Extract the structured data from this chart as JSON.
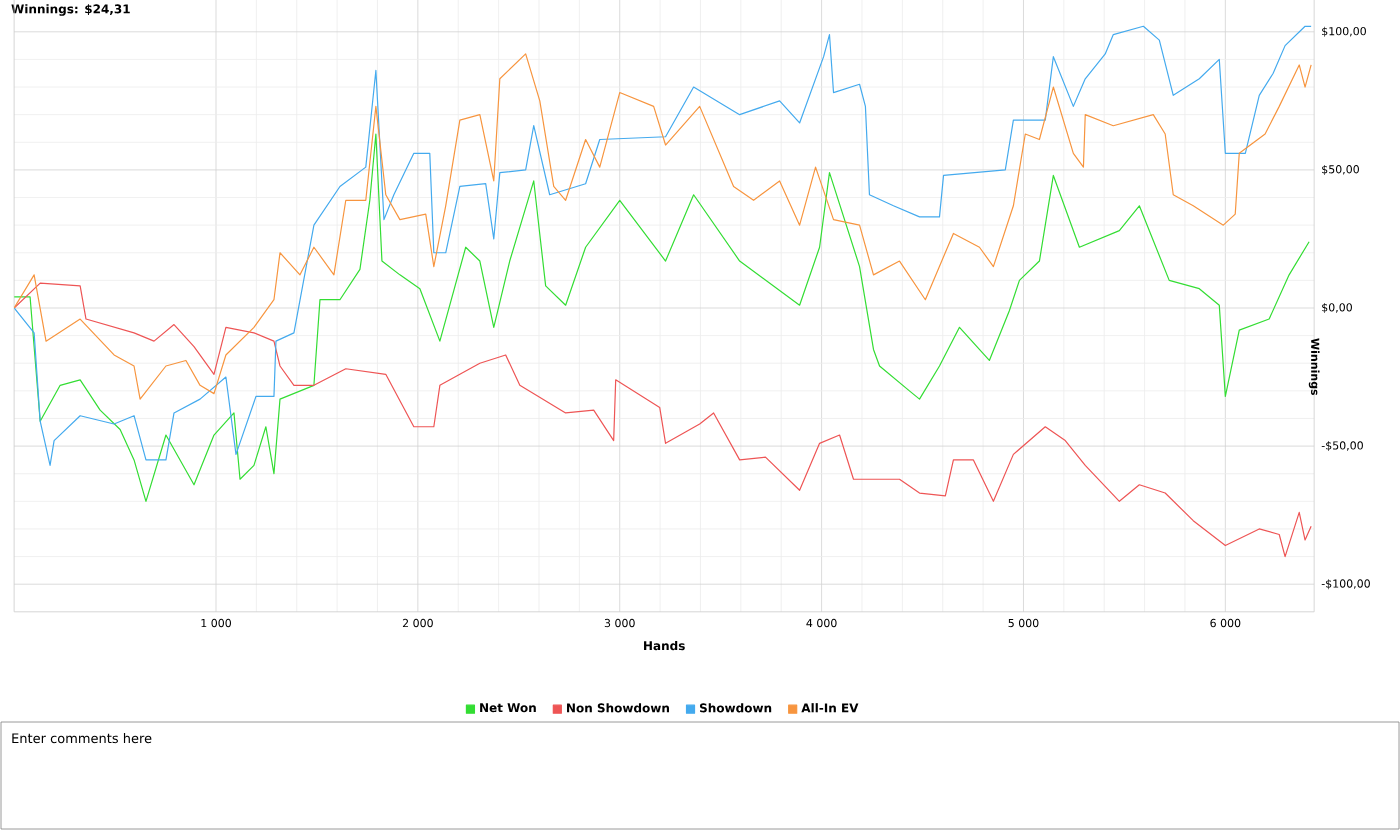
{
  "chart_data": {
    "type": "line",
    "title": "Winnings: $24,31",
    "xlabel": "Hands",
    "ylabel": "Winnings",
    "xlim": [
      0,
      6440
    ],
    "ylim": [
      -110,
      121
    ],
    "xticks": [
      {
        "value": 1000,
        "label": "1 000"
      },
      {
        "value": 2000,
        "label": "2 000"
      },
      {
        "value": 3000,
        "label": "3 000"
      },
      {
        "value": 4000,
        "label": "4 000"
      },
      {
        "value": 5000,
        "label": "5 000"
      },
      {
        "value": 6000,
        "label": "6 000"
      }
    ],
    "yticks": [
      {
        "value": -100,
        "label": "-$100,00"
      },
      {
        "value": -50,
        "label": "-$50,00"
      },
      {
        "value": 0,
        "label": "$0,00"
      },
      {
        "value": 50,
        "label": "$50,00"
      },
      {
        "value": 100,
        "label": "$100,00"
      }
    ],
    "grid": true,
    "legend": "bottom",
    "marker": "none",
    "line_style": "solid",
    "annotations": [
      "Enter comments here"
    ],
    "series": [
      {
        "name": "Net Won",
        "color": "#33dd33",
        "x": [
          0,
          79,
          129,
          228,
          327,
          426,
          525,
          594,
          653,
          752,
          891,
          990,
          1089,
          1119,
          1188,
          1247,
          1287,
          1317,
          1485,
          1515,
          1614,
          1713,
          1762,
          1792,
          1822,
          1911,
          2010,
          2109,
          2237,
          2307,
          2376,
          2455,
          2574,
          2633,
          2732,
          2831,
          3000,
          3227,
          3366,
          3594,
          3891,
          3990,
          4039,
          4188,
          4257,
          4287,
          4435,
          4485,
          4584,
          4683,
          4831,
          4930,
          4980,
          5079,
          5148,
          5277,
          5475,
          5574,
          5722,
          5871,
          5970,
          6000,
          6069,
          6217,
          6316,
          6415
        ],
        "values": [
          4,
          4,
          -41,
          -28,
          -26,
          -37,
          -44,
          -55,
          -70,
          -46,
          -64,
          -46,
          -38,
          -62,
          -57,
          -43,
          -60,
          -33,
          -28,
          3,
          3,
          14,
          39,
          63,
          17,
          12,
          7,
          -12,
          22,
          17,
          -7,
          17,
          46,
          8,
          1,
          22,
          39,
          17,
          41,
          17,
          1,
          22,
          49,
          15,
          -15,
          -21,
          -30,
          -33,
          -21,
          -7,
          -19,
          -1,
          10,
          17,
          48,
          22,
          28,
          37,
          10,
          7,
          1,
          -32,
          -8,
          -4,
          12,
          24
        ]
      },
      {
        "name": "Non Showdown",
        "color": "#ee5555",
        "x": [
          0,
          129,
          327,
          356,
          594,
          693,
          792,
          891,
          990,
          1049,
          1188,
          1287,
          1317,
          1386,
          1485,
          1643,
          1841,
          1980,
          2079,
          2109,
          2307,
          2435,
          2505,
          2732,
          2871,
          2970,
          2980,
          3198,
          3227,
          3396,
          3465,
          3594,
          3722,
          3891,
          3990,
          4089,
          4158,
          4386,
          4485,
          4613,
          4653,
          4752,
          4851,
          4950,
          5108,
          5207,
          5306,
          5475,
          5574,
          5702,
          5841,
          6000,
          6168,
          6267,
          6296,
          6366,
          6395,
          6425
        ],
        "values": [
          0,
          9,
          8,
          -4,
          -9,
          -12,
          -6,
          -14,
          -24,
          -7,
          -9,
          -12,
          -21,
          -28,
          -28,
          -22,
          -24,
          -43,
          -43,
          -28,
          -20,
          -17,
          -28,
          -38,
          -37,
          -48,
          -26,
          -36,
          -49,
          -42,
          -38,
          -55,
          -54,
          -66,
          -49,
          -46,
          -62,
          -62,
          -67,
          -68,
          -55,
          -55,
          -70,
          -53,
          -43,
          -48,
          -57,
          -70,
          -64,
          -67,
          -77,
          -86,
          -80,
          -82,
          -90,
          -74,
          -84,
          -79
        ]
      },
      {
        "name": "Showdown",
        "color": "#44aaee",
        "x": [
          0,
          99,
          129,
          178,
          198,
          327,
          495,
          594,
          653,
          752,
          792,
          921,
          1049,
          1099,
          1198,
          1287,
          1297,
          1386,
          1485,
          1614,
          1742,
          1792,
          1832,
          1881,
          1980,
          2059,
          2079,
          2138,
          2208,
          2336,
          2376,
          2406,
          2534,
          2574,
          2653,
          2831,
          2901,
          3227,
          3366,
          3594,
          3792,
          3891,
          4010,
          4039,
          4059,
          4188,
          4217,
          4237,
          4356,
          4485,
          4584,
          4604,
          4910,
          4950,
          5108,
          5148,
          5247,
          5306,
          5405,
          5445,
          5594,
          5673,
          5742,
          5871,
          5970,
          6000,
          6099,
          6168,
          6237,
          6296,
          6395,
          6425
        ],
        "values": [
          0,
          -9,
          -41,
          -57,
          -48,
          -39,
          -42,
          -39,
          -55,
          -55,
          -38,
          -33,
          -25,
          -53,
          -32,
          -32,
          -12,
          -9,
          30,
          44,
          51,
          86,
          32,
          41,
          56,
          56,
          20,
          20,
          44,
          45,
          25,
          49,
          50,
          66,
          41,
          45,
          61,
          62,
          80,
          70,
          75,
          67,
          91,
          99,
          78,
          81,
          73,
          41,
          37,
          33,
          33,
          48,
          50,
          68,
          68,
          91,
          73,
          83,
          92,
          99,
          102,
          97,
          77,
          83,
          90,
          56,
          56,
          77,
          85,
          95,
          102,
          102
        ]
      },
      {
        "name": "All-In EV",
        "color": "#f7953f",
        "x": [
          0,
          99,
          158,
          327,
          495,
          594,
          624,
          752,
          851,
          921,
          990,
          1049,
          1188,
          1287,
          1317,
          1416,
          1485,
          1584,
          1643,
          1742,
          1792,
          1841,
          1911,
          2039,
          2079,
          2138,
          2208,
          2307,
          2376,
          2406,
          2534,
          2604,
          2673,
          2732,
          2831,
          2901,
          3000,
          3168,
          3227,
          3396,
          3564,
          3663,
          3792,
          3891,
          3970,
          4059,
          4188,
          4257,
          4386,
          4514,
          4653,
          4782,
          4851,
          4950,
          5009,
          5079,
          5148,
          5247,
          5297,
          5306,
          5445,
          5643,
          5702,
          5742,
          5841,
          5990,
          6049,
          6069,
          6197,
          6267,
          6366,
          6395,
          6425
        ],
        "values": [
          0,
          12,
          -12,
          -4,
          -17,
          -21,
          -33,
          -21,
          -19,
          -28,
          -31,
          -17,
          -7,
          3,
          20,
          12,
          22,
          12,
          39,
          39,
          73,
          41,
          32,
          34,
          15,
          37,
          68,
          70,
          46,
          83,
          92,
          75,
          44,
          39,
          61,
          51,
          78,
          73,
          59,
          73,
          44,
          39,
          46,
          30,
          51,
          32,
          30,
          12,
          17,
          3,
          27,
          22,
          15,
          37,
          63,
          61,
          80,
          56,
          51,
          70,
          66,
          70,
          63,
          41,
          37,
          30,
          34,
          56,
          63,
          73,
          88,
          80,
          88
        ]
      }
    ]
  }
}
